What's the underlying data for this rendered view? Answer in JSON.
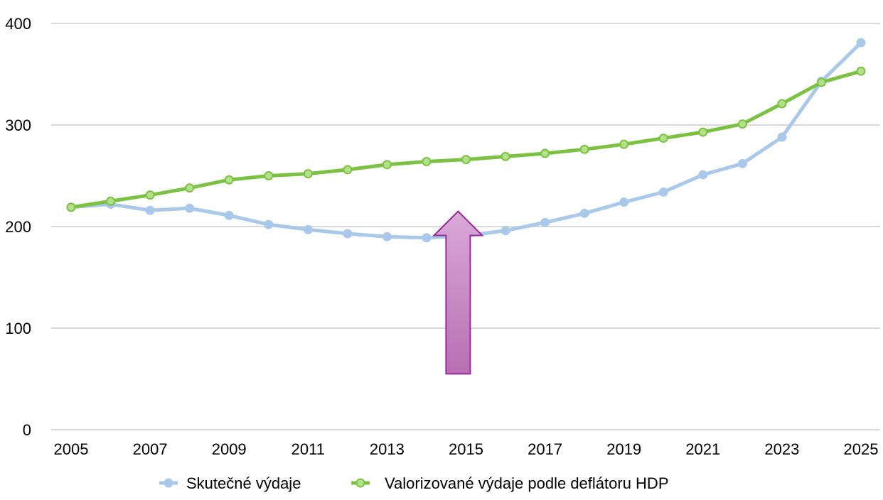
{
  "chart_data": {
    "type": "line",
    "title": "",
    "xlabel": "",
    "ylabel": "",
    "x": [
      2005,
      2006,
      2007,
      2008,
      2009,
      2010,
      2011,
      2012,
      2013,
      2014,
      2015,
      2016,
      2017,
      2018,
      2019,
      2020,
      2021,
      2022,
      2023,
      2024,
      2025
    ],
    "x_tick_labels": [
      "2005",
      "2007",
      "2009",
      "2011",
      "2013",
      "2015",
      "2017",
      "2019",
      "2021",
      "2023",
      "2025"
    ],
    "y_tick_labels": [
      "0",
      "100",
      "200",
      "300",
      "400"
    ],
    "ylim": [
      0,
      400
    ],
    "grid": "horizontal",
    "legend_position": "bottom",
    "series": [
      {
        "name": "Skutečné výdaje",
        "color": "#a9c8ea",
        "values": [
          219,
          222,
          216,
          218,
          211,
          202,
          197,
          193,
          190,
          189,
          191,
          196,
          204,
          213,
          224,
          234,
          251,
          262,
          288,
          343,
          381
        ]
      },
      {
        "name": "Valorizované výdaje podle deflátoru HDP",
        "color": "#7cc242",
        "marker_fill": "#b3e08a",
        "values": [
          219,
          225,
          231,
          238,
          246,
          250,
          252,
          256,
          261,
          264,
          266,
          269,
          272,
          276,
          281,
          287,
          293,
          301,
          321,
          342,
          353
        ]
      }
    ],
    "annotation": {
      "type": "arrow-up",
      "x": 2014.8,
      "y_tail": 55,
      "y_head": 215,
      "fill_top": "#d9a9d8",
      "fill_bottom": "#b86fb3",
      "stroke": "#9a2a9a"
    }
  }
}
